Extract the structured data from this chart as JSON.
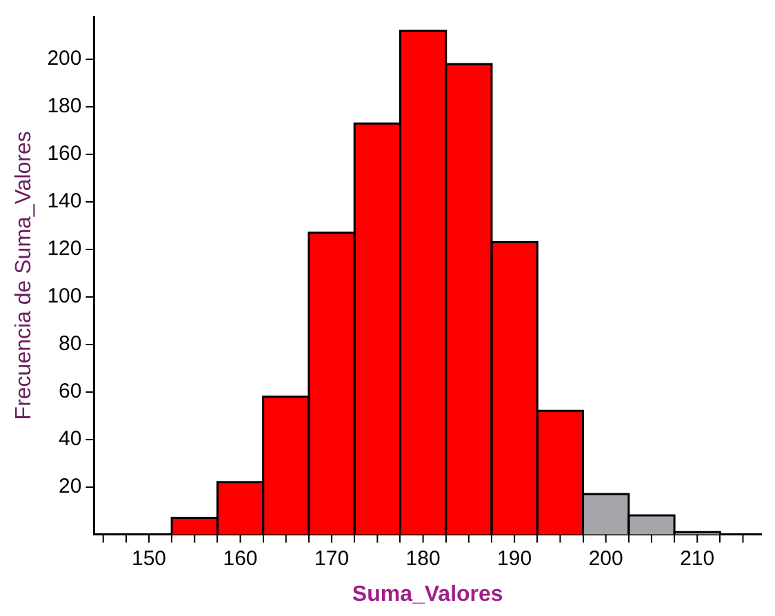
{
  "chart_data": {
    "type": "histogram",
    "xlabel": "Suma_Valores",
    "ylabel": "Frecuencia de Suma_Valores",
    "bins": [
      152.5,
      157.5,
      162.5,
      167.5,
      172.5,
      177.5,
      182.5,
      187.5,
      192.5,
      197.5,
      202.5,
      207.5,
      212.5
    ],
    "values": [
      7,
      22,
      58,
      127,
      173,
      212,
      198,
      123,
      52,
      17,
      8,
      1
    ],
    "colors": [
      "#ff0000",
      "#ff0000",
      "#ff0000",
      "#ff0000",
      "#ff0000",
      "#ff0000",
      "#ff0000",
      "#ff0000",
      "#ff0000",
      "#a5a5aa",
      "#a5a5aa",
      "#a5a5aa"
    ],
    "xlim": [
      144,
      217
    ],
    "xticks": [
      {
        "value": 145,
        "label": null
      },
      150,
      {
        "value": 155,
        "label": null
      },
      160,
      {
        "value": 165,
        "label": null
      },
      170,
      {
        "value": 175,
        "label": null
      },
      180,
      {
        "value": 185,
        "label": null
      },
      190,
      {
        "value": 195,
        "label": null
      },
      200,
      {
        "value": 205,
        "label": null
      },
      210,
      {
        "value": 215,
        "label": null
      }
    ],
    "ylim": [
      0,
      218
    ],
    "yticks": [
      20,
      40,
      60,
      80,
      100,
      120,
      140,
      160,
      180,
      200
    ],
    "grid": false,
    "legend": false
  }
}
